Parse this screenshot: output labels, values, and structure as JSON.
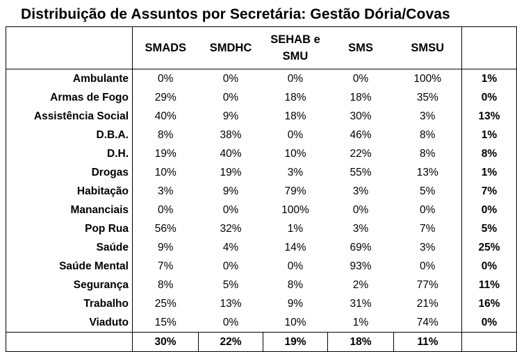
{
  "title": "Distribuição de Assuntos por Secretária: Gestão Dória/Covas",
  "columns": [
    "SMADS",
    "SMDHC",
    "SEHAB e SMU",
    "SMS",
    "SMSU"
  ],
  "rows": [
    {
      "label": "Ambulante",
      "values": [
        "0%",
        "0%",
        "0%",
        "0%",
        "100%"
      ],
      "total": "1%"
    },
    {
      "label": "Armas de Fogo",
      "values": [
        "29%",
        "0%",
        "18%",
        "18%",
        "35%"
      ],
      "total": "0%"
    },
    {
      "label": "Assistência Social",
      "values": [
        "40%",
        "9%",
        "18%",
        "30%",
        "3%"
      ],
      "total": "13%"
    },
    {
      "label": "D.B.A.",
      "values": [
        "8%",
        "38%",
        "0%",
        "46%",
        "8%"
      ],
      "total": "1%"
    },
    {
      "label": "D.H.",
      "values": [
        "19%",
        "40%",
        "10%",
        "22%",
        "8%"
      ],
      "total": "8%"
    },
    {
      "label": "Drogas",
      "values": [
        "10%",
        "19%",
        "3%",
        "55%",
        "13%"
      ],
      "total": "1%"
    },
    {
      "label": "Habitação",
      "values": [
        "3%",
        "9%",
        "79%",
        "3%",
        "5%"
      ],
      "total": "7%"
    },
    {
      "label": "Mananciais",
      "values": [
        "0%",
        "0%",
        "100%",
        "0%",
        "0%"
      ],
      "total": "0%"
    },
    {
      "label": "Pop Rua",
      "values": [
        "56%",
        "32%",
        "1%",
        "3%",
        "7%"
      ],
      "total": "5%"
    },
    {
      "label": "Saúde",
      "values": [
        "9%",
        "4%",
        "14%",
        "69%",
        "3%"
      ],
      "total": "25%"
    },
    {
      "label": "Saúde Mental",
      "values": [
        "7%",
        "0%",
        "0%",
        "93%",
        "0%"
      ],
      "total": "0%"
    },
    {
      "label": "Segurança",
      "values": [
        "8%",
        "5%",
        "8%",
        "2%",
        "77%"
      ],
      "total": "11%"
    },
    {
      "label": "Trabalho",
      "values": [
        "25%",
        "13%",
        "9%",
        "31%",
        "21%"
      ],
      "total": "16%"
    },
    {
      "label": "Viaduto",
      "values": [
        "15%",
        "0%",
        "10%",
        "1%",
        "74%"
      ],
      "total": "0%"
    }
  ],
  "footer": [
    "30%",
    "22%",
    "19%",
    "18%",
    "11%"
  ]
}
